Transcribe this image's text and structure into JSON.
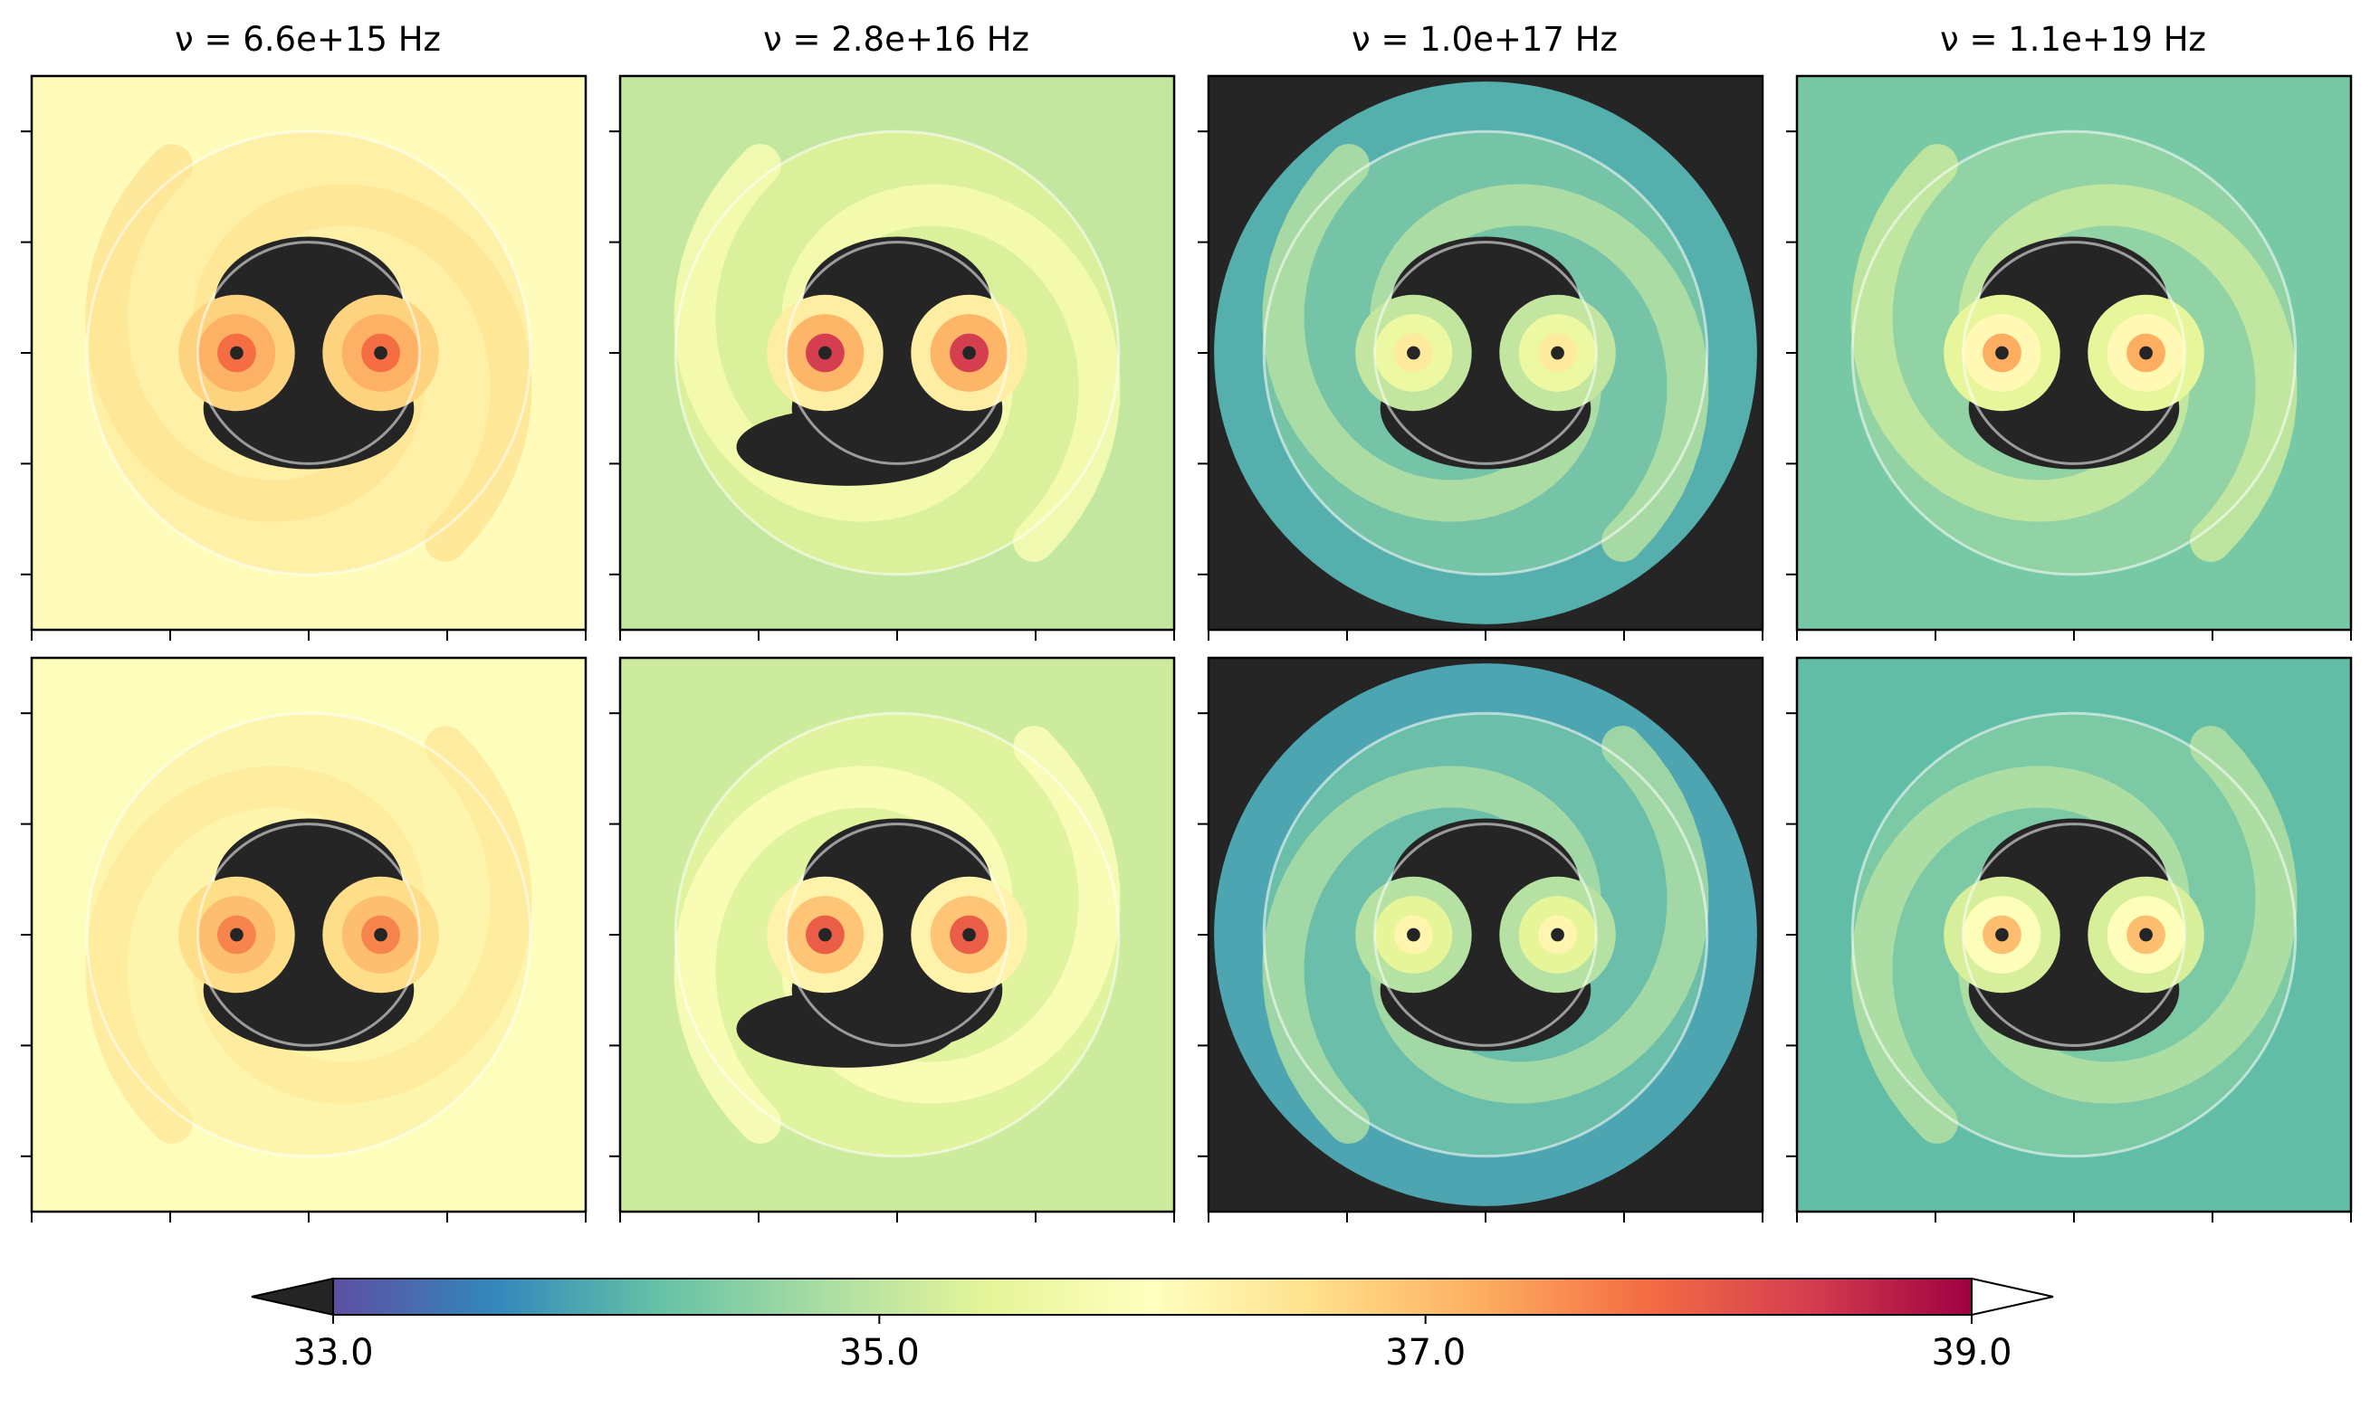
{
  "chart_data": {
    "type": "heatmap",
    "grid": false,
    "layout": "2 rows x 4 columns of image panels sharing one horizontal colorbar at the bottom",
    "column_titles": [
      "ν = 6.6e+15 Hz",
      "ν = 2.8e+16 Hz",
      "ν = 1.0e+17 Hz",
      "ν = 1.1e+19 Hz"
    ],
    "typical_level": [
      [
        36.2,
        35.2,
        34.3,
        34.5
      ],
      [
        36.1,
        35.3,
        34.2,
        34.3
      ]
    ],
    "peak_level": [
      [
        37.8,
        38.4,
        36.4,
        37.2
      ],
      [
        37.6,
        38.0,
        36.2,
        37.0
      ]
    ],
    "circles": [
      "inner",
      "outer"
    ],
    "colorbar": {
      "orientation": "horizontal",
      "range": [
        33.0,
        39.0
      ],
      "extend": "both",
      "under_color": "#252525",
      "over_color": "#ffffff",
      "ticks": [
        33.0,
        35.0,
        37.0,
        39.0
      ],
      "tick_labels": [
        "33.0",
        "35.0",
        "37.0",
        "39.0"
      ],
      "colormap": "Spectral_r",
      "stops": [
        "#5e4fa2",
        "#3288bd",
        "#66c2a5",
        "#abdda4",
        "#e6f598",
        "#ffffbf",
        "#fee08b",
        "#fdae61",
        "#f46d43",
        "#d53e4f",
        "#9e0142"
      ]
    },
    "axis_ticks": {
      "y_ticks_per_panel": 5,
      "x_ticks_per_panel": 5,
      "tick_labels_shown": false
    }
  }
}
